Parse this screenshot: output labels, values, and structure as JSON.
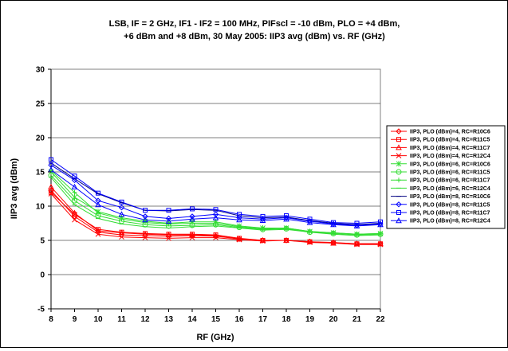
{
  "chart_data": {
    "type": "line",
    "title_lines": [
      "LSB, IF = 2 GHz, IF1 - IF2 = 100 MHz, PIFscl = -10 dBm, PLO = +4 dBm,",
      "+6 dBm and +8 dBm, 30 May 2005: IIP3 avg (dBm) vs. RF (GHz)"
    ],
    "xlabel": "RF (GHz)",
    "ylabel": "IIP3 avg (dBm)",
    "xlim": [
      8,
      22
    ],
    "ylim": [
      -5,
      30
    ],
    "xticks": [
      8,
      9,
      10,
      11,
      12,
      13,
      14,
      15,
      16,
      17,
      18,
      19,
      20,
      21,
      22
    ],
    "yticks": [
      -5,
      0,
      5,
      10,
      15,
      20,
      25,
      30
    ],
    "grid": "horizontal",
    "legend_position": "right",
    "x": [
      8,
      9,
      10,
      11,
      12,
      13,
      14,
      15,
      16,
      17,
      18,
      19,
      20,
      21,
      22
    ],
    "series": [
      {
        "name": "IIP3, PLO (dBm)=4, RC=R10C6",
        "color": "#ff0000",
        "marker": "diamond",
        "values": [
          12.3,
          8.5,
          6.2,
          5.8,
          5.7,
          5.6,
          5.7,
          5.6,
          5.2,
          5.0,
          5.0,
          4.8,
          4.7,
          4.5,
          4.5
        ]
      },
      {
        "name": "IIP3, PLO (dBm)=4, RC=R11C5",
        "color": "#ff0000",
        "marker": "square",
        "values": [
          12.0,
          8.8,
          6.6,
          6.2,
          6.0,
          5.9,
          5.9,
          5.8,
          5.3,
          5.0,
          5.0,
          4.8,
          4.6,
          4.5,
          4.5
        ]
      },
      {
        "name": "IIP3, PLO (dBm)=4, RC=R11C7",
        "color": "#ff0000",
        "marker": "triangle",
        "values": [
          12.8,
          9.0,
          6.4,
          6.1,
          5.9,
          5.8,
          5.8,
          5.7,
          5.2,
          5.0,
          5.0,
          4.8,
          4.6,
          4.5,
          4.5
        ]
      },
      {
        "name": "IIP3, PLO (dBm)=4, RC=R12C4",
        "color": "#ff0000",
        "marker": "x",
        "values": [
          11.8,
          8.0,
          5.9,
          5.5,
          5.4,
          5.3,
          5.4,
          5.4,
          5.1,
          4.9,
          5.0,
          4.7,
          4.6,
          4.4,
          4.4
        ]
      },
      {
        "name": "IIP3, PLO (dBm)=6, RC=R10C6",
        "color": "#33dd33",
        "marker": "star",
        "values": [
          15.0,
          11.3,
          9.2,
          8.3,
          7.8,
          7.5,
          7.7,
          7.7,
          7.1,
          6.8,
          6.8,
          6.3,
          6.1,
          5.9,
          6.0
        ]
      },
      {
        "name": "IIP3, PLO (dBm)=6, RC=R11C5",
        "color": "#33dd33",
        "marker": "circle",
        "values": [
          14.5,
          10.8,
          8.6,
          7.8,
          7.3,
          7.1,
          7.2,
          7.3,
          6.9,
          6.6,
          6.7,
          6.2,
          6.0,
          5.8,
          5.9
        ]
      },
      {
        "name": "IIP3, PLO (dBm)=6, RC=R11C7",
        "color": "#33dd33",
        "marker": "plus",
        "values": [
          15.2,
          12.0,
          9.0,
          8.1,
          7.6,
          7.4,
          7.5,
          7.5,
          7.0,
          6.7,
          6.8,
          6.3,
          6.1,
          5.9,
          6.0
        ]
      },
      {
        "name": "IIP3, PLO (dBm)=6, RC=R12C4",
        "color": "#33dd33",
        "marker": "dash",
        "values": [
          14.2,
          10.2,
          8.2,
          7.4,
          7.0,
          6.8,
          7.0,
          7.1,
          6.8,
          6.5,
          6.6,
          6.2,
          5.9,
          5.7,
          5.8
        ]
      },
      {
        "name": "IIP3, PLO (dBm)=8, RC=R10C6",
        "color": "#000080",
        "marker": "dash",
        "values": [
          16.3,
          14.0,
          11.8,
          10.5,
          9.4,
          9.3,
          9.5,
          9.4,
          8.6,
          8.3,
          8.4,
          7.9,
          7.5,
          7.3,
          7.5
        ]
      },
      {
        "name": "IIP3, PLO (dBm)=8, RC=R11C5",
        "color": "#0000ff",
        "marker": "diamond",
        "values": [
          16.0,
          13.8,
          10.8,
          9.8,
          8.5,
          8.2,
          8.5,
          8.8,
          8.3,
          8.1,
          8.3,
          7.8,
          7.4,
          7.2,
          7.4
        ]
      },
      {
        "name": "IIP3, PLO (dBm)=8, RC=R11C7",
        "color": "#0000ff",
        "marker": "square",
        "values": [
          16.8,
          14.4,
          11.9,
          10.6,
          9.4,
          9.4,
          9.6,
          9.5,
          8.8,
          8.5,
          8.6,
          8.1,
          7.6,
          7.5,
          7.7
        ]
      },
      {
        "name": "IIP3, PLO (dBm)=8, RC=R12C4",
        "color": "#0000ff",
        "marker": "triangle",
        "values": [
          15.3,
          12.8,
          10.2,
          8.8,
          8.0,
          7.8,
          8.1,
          8.3,
          8.0,
          7.9,
          8.1,
          7.6,
          7.3,
          7.1,
          7.3
        ]
      }
    ]
  }
}
